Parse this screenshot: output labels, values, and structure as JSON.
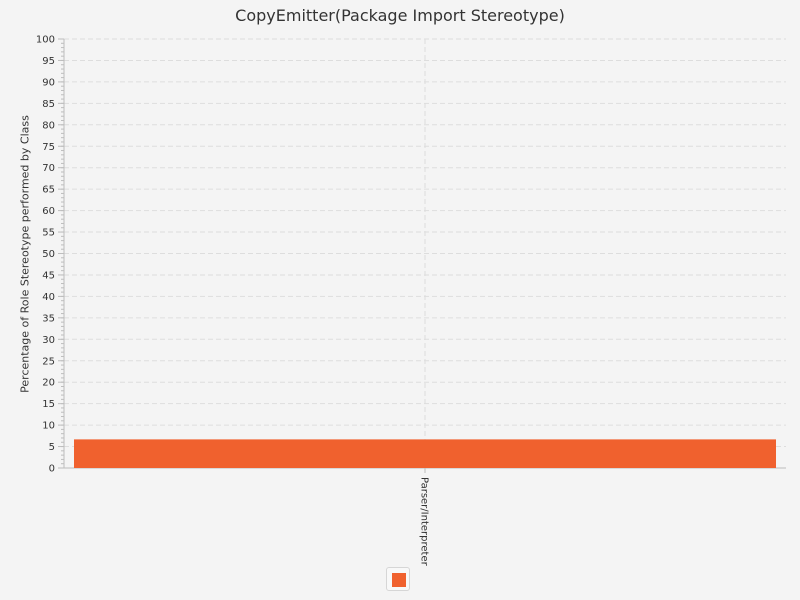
{
  "chart_data": {
    "type": "bar",
    "title": "CopyEmitter(Package Import Stereotype)",
    "ylabel": "Percentage of Role Stereotype performed by Class",
    "xlabel": "",
    "categories": [
      "Parser/Interpreter"
    ],
    "series": [
      {
        "values": [
          6.67
        ]
      }
    ],
    "ylim": [
      0,
      100
    ],
    "yticks": [
      "0",
      "5",
      "10",
      "15",
      "20",
      "25",
      "30",
      "35",
      "40",
      "45",
      "50",
      "55",
      "60",
      "65",
      "70",
      "75",
      "80",
      "85",
      "90",
      "95",
      "100"
    ],
    "grid": true,
    "legend_position": "bottom-center"
  },
  "colors": {
    "bar": "#f0612e",
    "grid": "#dddddd",
    "axis": "#bdbdbd",
    "tick_text": "#333333"
  }
}
